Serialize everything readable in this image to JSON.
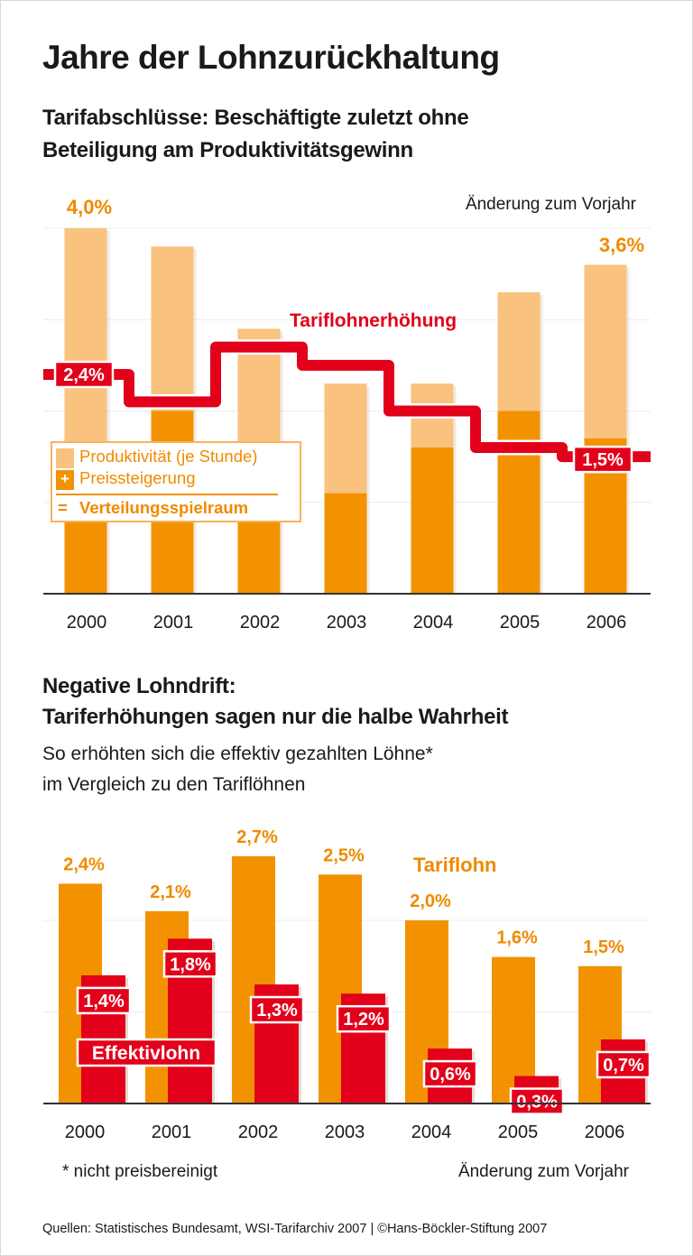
{
  "title": "Jahre der Lohnzurückhaltung",
  "colors": {
    "accent_orange": "#f39200",
    "light_orange": "#f9c27f",
    "red": "#e2001a",
    "text_orange": "#ef8a00"
  },
  "chart_data": [
    {
      "type": "bar",
      "subtitle_line1": "Tarifabschlüsse: Beschäftigte zuletzt ohne",
      "subtitle_line2": "Beteiligung am Produktivitätsgewinn",
      "unit_note": "Änderung zum Vorjahr",
      "stacked": true,
      "categories": [
        "2000",
        "2001",
        "2002",
        "2003",
        "2004",
        "2005",
        "2006"
      ],
      "series": [
        {
          "name": "Preissteigerung",
          "values": [
            1.4,
            2.0,
            1.4,
            1.1,
            1.6,
            2.0,
            1.7
          ]
        },
        {
          "name": "Produktivität (je Stunde)",
          "values": [
            2.6,
            1.8,
            1.5,
            1.2,
            0.7,
            1.3,
            1.9
          ]
        }
      ],
      "total_name": "Verteilungsspielraum",
      "totals": [
        4.0,
        3.8,
        2.9,
        2.3,
        2.3,
        3.3,
        3.6
      ],
      "line_series": {
        "name": "Tariflohnerhöhung",
        "type": "step",
        "values": [
          2.4,
          2.1,
          2.7,
          2.5,
          2.0,
          1.6,
          1.5
        ]
      },
      "labels": {
        "total_2000": "4,0%",
        "total_2006": "3,6%",
        "line_2000": "2,4%",
        "line_2006": "1,5%"
      },
      "legend": {
        "item1": "Produktivität (je Stunde)",
        "item2": "Preissteigerung",
        "plus": "+",
        "equals": "=",
        "item3": "Verteilungsspielraum",
        "placement": "bottom-left"
      },
      "ylim": [
        0,
        4.0
      ],
      "grid": true
    },
    {
      "type": "bar",
      "subtitle_line1": "Negative Lohndrift:",
      "subtitle_line2": "Tariferhöhungen sagen nur die halbe Wahrheit",
      "text_line1": "So erhöhten sich die effektiv gezahlten Löhne*",
      "text_line2": "im Vergleich zu den Tariflöhnen",
      "unit_note": "Änderung zum Vorjahr",
      "footnote": "* nicht preisbereinigt",
      "categories": [
        "2000",
        "2001",
        "2002",
        "2003",
        "2004",
        "2005",
        "2006"
      ],
      "series": [
        {
          "name": "Tariflohn",
          "values": [
            2.4,
            2.1,
            2.7,
            2.5,
            2.0,
            1.6,
            1.5
          ],
          "labels": [
            "2,4%",
            "2,1%",
            "2,7%",
            "2,5%",
            "2,0%",
            "1,6%",
            "1,5%"
          ]
        },
        {
          "name": "Effektivlohn",
          "values": [
            1.4,
            1.8,
            1.3,
            1.2,
            0.6,
            0.3,
            0.7
          ],
          "labels": [
            "1,4%",
            "1,8%",
            "1,3%",
            "1,2%",
            "0,6%",
            "0,3%",
            "0,7%"
          ]
        }
      ],
      "ylim": [
        0,
        2.7
      ],
      "grid": true
    }
  ],
  "sources": "Quellen: Statistisches Bundesamt, WSI-Tarifarchiv 2007 | ©Hans-Böckler-Stiftung 2007"
}
